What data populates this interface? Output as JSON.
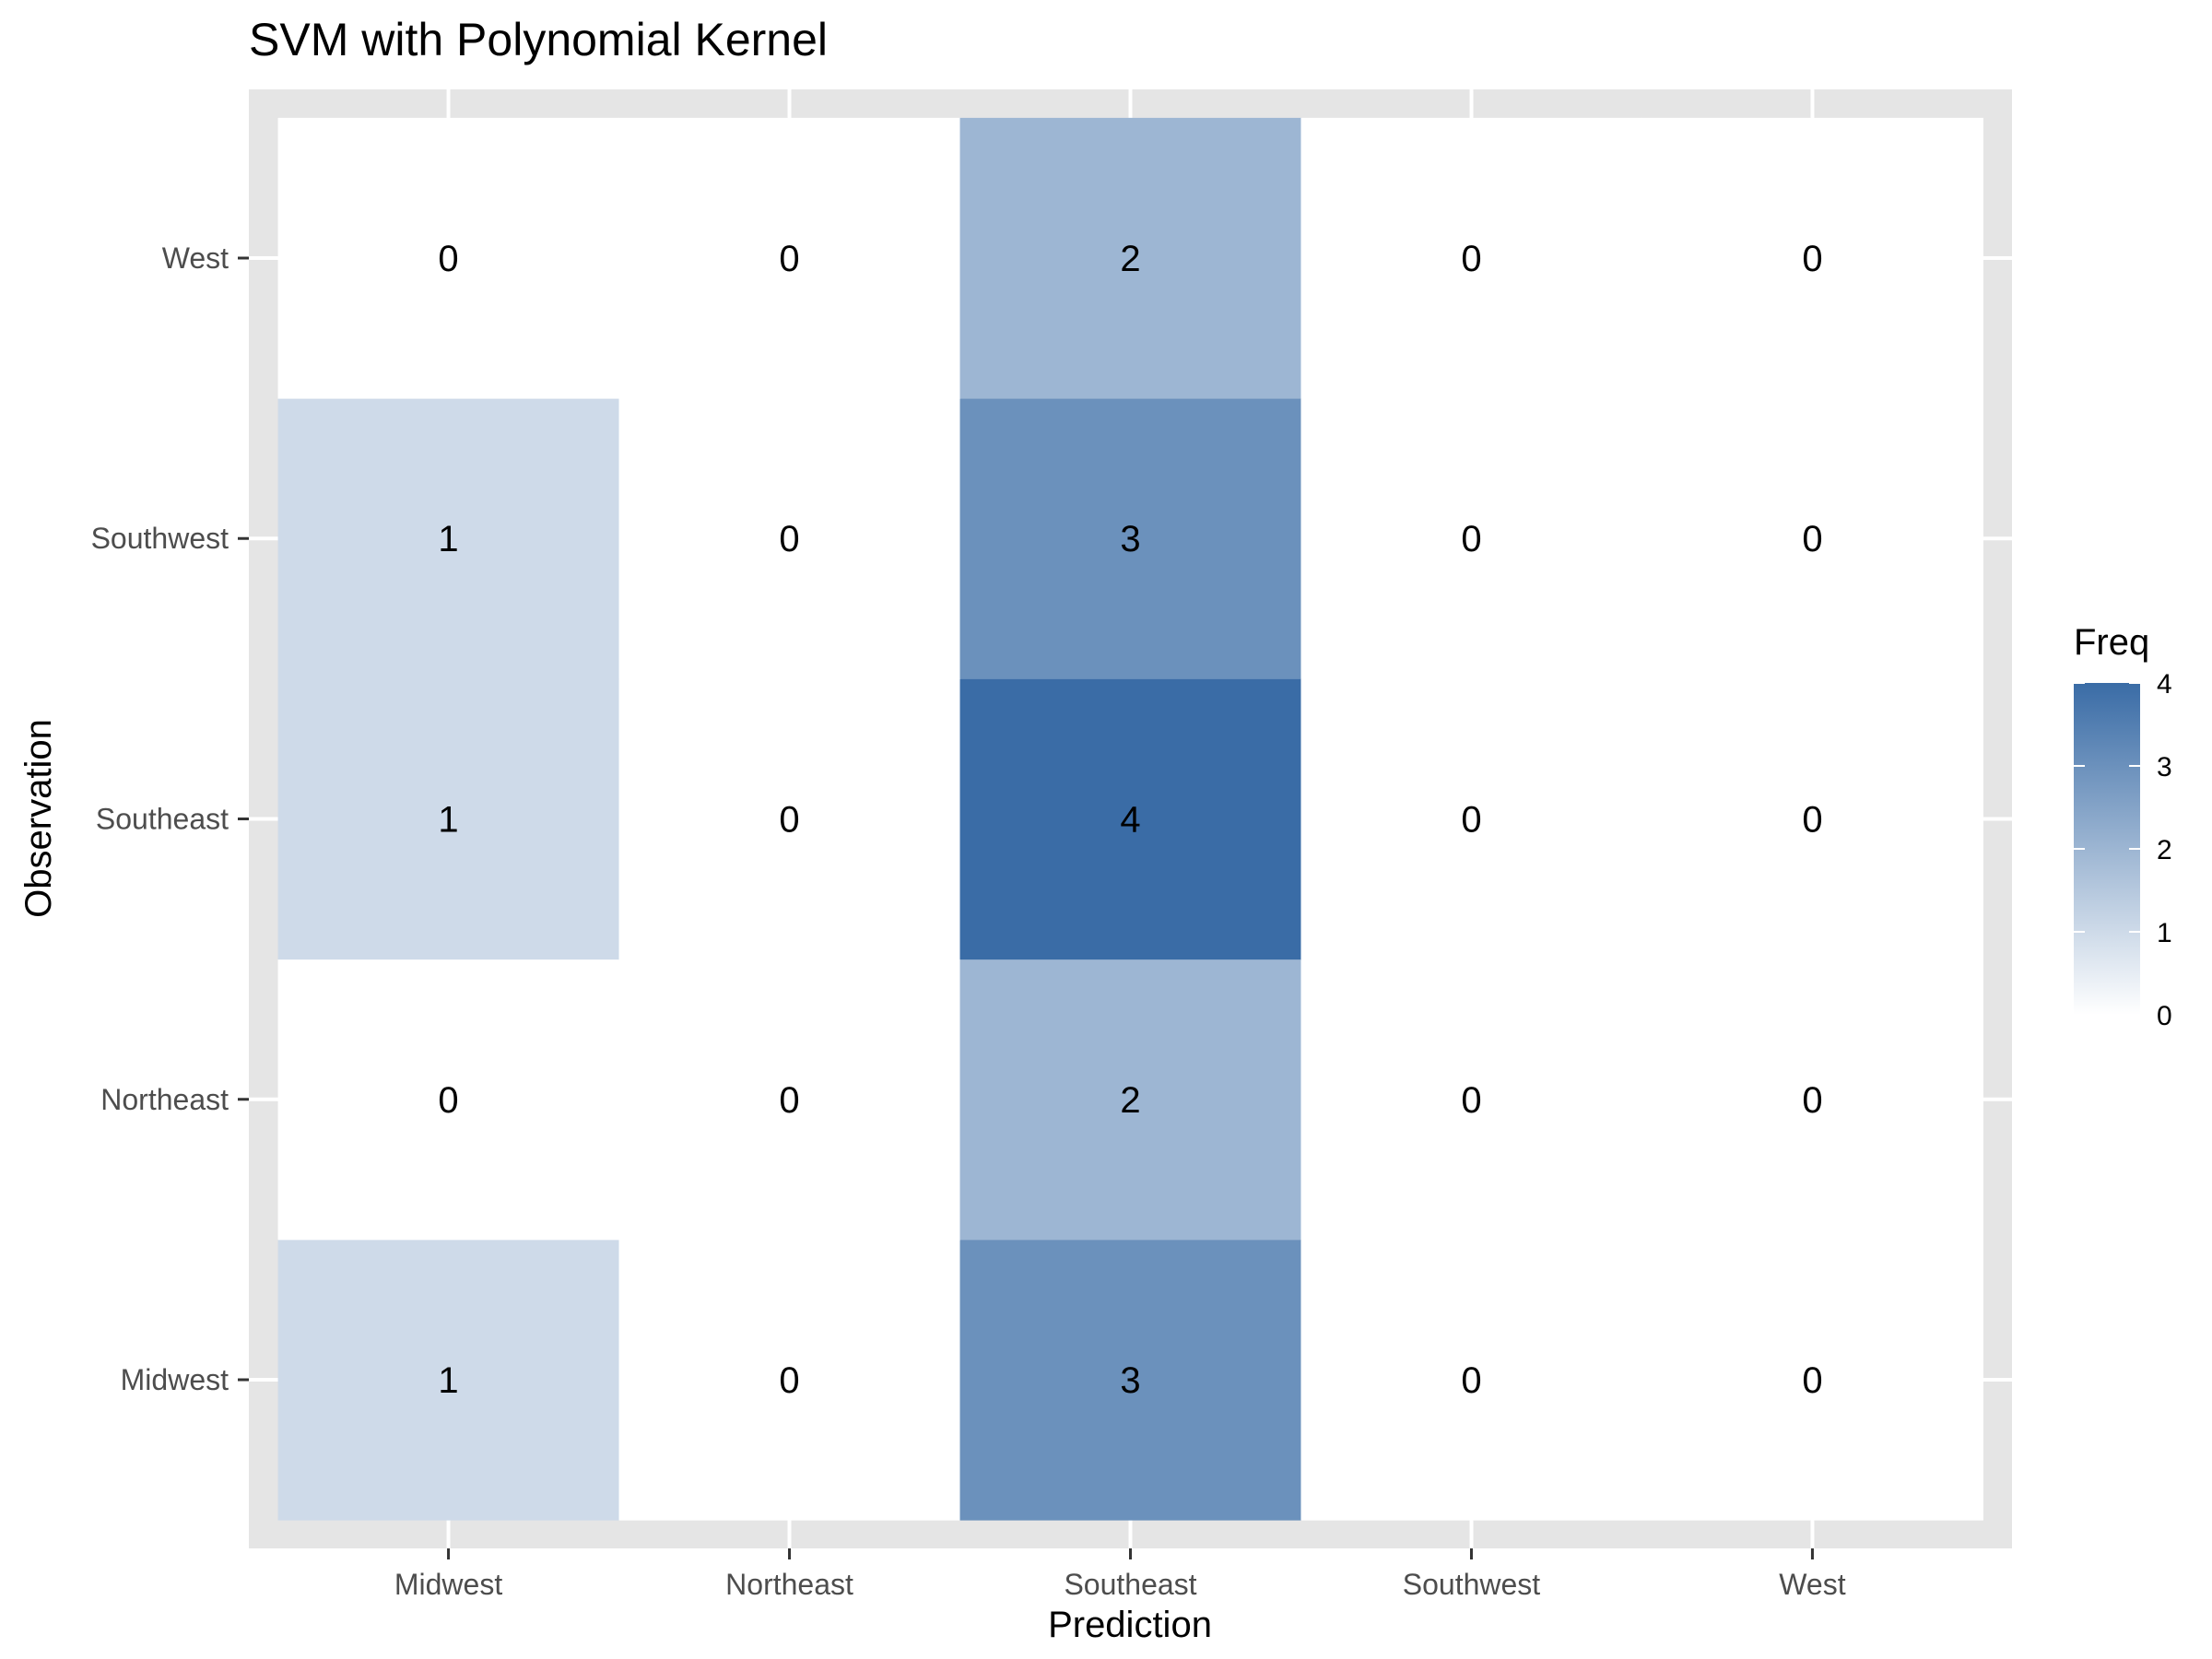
{
  "chart_data": {
    "type": "heatmap",
    "title": "SVM with Polynomial Kernel",
    "xlabel": "Prediction",
    "ylabel": "Observation",
    "x_categories": [
      "Midwest",
      "Northeast",
      "Southeast",
      "Southwest",
      "West"
    ],
    "y_categories": [
      "Midwest",
      "Northeast",
      "Southeast",
      "Southwest",
      "West"
    ],
    "values": [
      [
        1,
        0,
        3,
        0,
        0
      ],
      [
        0,
        0,
        2,
        0,
        0
      ],
      [
        1,
        0,
        4,
        0,
        0
      ],
      [
        1,
        0,
        3,
        0,
        0
      ],
      [
        0,
        0,
        2,
        0,
        0
      ]
    ],
    "legend": {
      "title": "Freq",
      "ticks": [
        0,
        1,
        2,
        3,
        4
      ],
      "low_color": "#ffffff",
      "high_color": "#3a6ca6"
    },
    "panel_background": "#e5e5e5",
    "grid": true
  }
}
